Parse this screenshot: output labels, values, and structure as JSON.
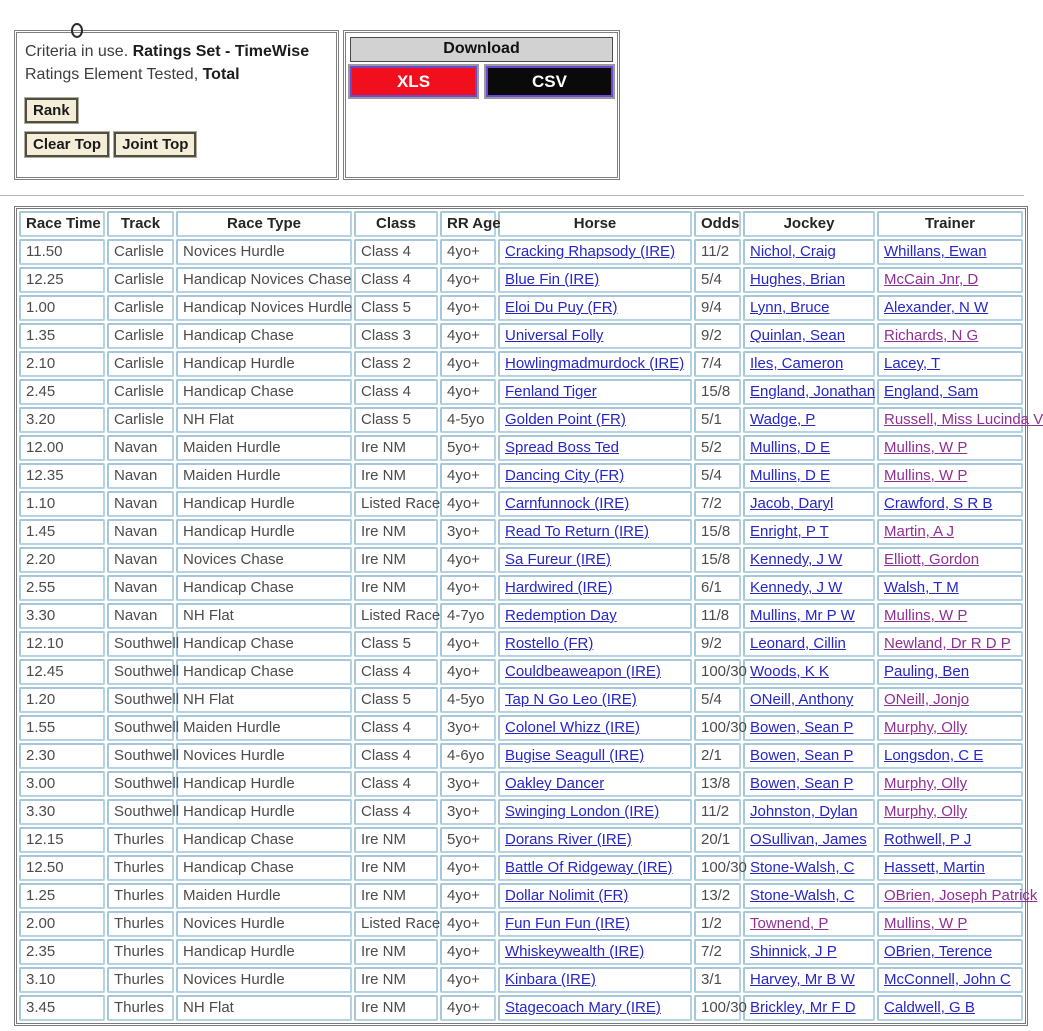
{
  "criteria_box": {
    "line1_prefix": "Criteria in use. ",
    "line1_bold": "Ratings Set - TimeWise",
    "line2_prefix": "Ratings Element Tested, ",
    "line2_bold": "Total",
    "rank_button": "Rank",
    "clear_top_button": "Clear Top",
    "joint_top_button": "Joint Top"
  },
  "download_box": {
    "title": "Download",
    "xls_button": "XLS",
    "csv_button": "CSV"
  },
  "colors": {
    "link_blue": "#2626c9",
    "link_visited_purple": "#8e3094",
    "cell_border_blue": "#b4d2df",
    "xls_red": "#f10e1d",
    "csv_black": "#0a0a0a",
    "button_beige": "#f4eed8",
    "download_header_gray": "#d2d2d2"
  },
  "table": {
    "headers": [
      "Race Time",
      "Track",
      "Race Type",
      "Class",
      "RR Age",
      "Horse",
      "Odds",
      "Jockey",
      "Trainer"
    ],
    "rows": [
      {
        "time": "11.50",
        "track": "Carlisle",
        "race_type": "Novices Hurdle",
        "race_class": "Class 4",
        "rr_age": "4yo+",
        "horse": "Cracking Rhapsody (IRE)",
        "odds": "11/2",
        "jockey": "Nichol, Craig",
        "trainer": "Whillans, Ewan",
        "visited": []
      },
      {
        "time": "12.25",
        "track": "Carlisle",
        "race_type": "Handicap Novices Chase",
        "race_class": "Class 4",
        "rr_age": "4yo+",
        "horse": "Blue Fin (IRE)",
        "odds": "5/4",
        "jockey": "Hughes, Brian",
        "trainer": "McCain Jnr, D",
        "visited": [
          "trainer"
        ]
      },
      {
        "time": "1.00",
        "track": "Carlisle",
        "race_type": "Handicap Novices Hurdle",
        "race_class": "Class 5",
        "rr_age": "4yo+",
        "horse": "Eloi Du Puy (FR)",
        "odds": "9/4",
        "jockey": "Lynn, Bruce",
        "trainer": "Alexander, N W",
        "visited": []
      },
      {
        "time": "1.35",
        "track": "Carlisle",
        "race_type": "Handicap Chase",
        "race_class": "Class 3",
        "rr_age": "4yo+",
        "horse": "Universal Folly",
        "odds": "9/2",
        "jockey": "Quinlan, Sean",
        "trainer": "Richards, N G",
        "visited": [
          "trainer"
        ]
      },
      {
        "time": "2.10",
        "track": "Carlisle",
        "race_type": "Handicap Hurdle",
        "race_class": "Class 2",
        "rr_age": "4yo+",
        "horse": "Howlingmadmurdock (IRE)",
        "odds": "7/4",
        "jockey": "Iles, Cameron",
        "trainer": "Lacey, T",
        "visited": []
      },
      {
        "time": "2.45",
        "track": "Carlisle",
        "race_type": "Handicap Chase",
        "race_class": "Class 4",
        "rr_age": "4yo+",
        "horse": "Fenland Tiger",
        "odds": "15/8",
        "jockey": "England, Jonathan",
        "trainer": "England, Sam",
        "visited": []
      },
      {
        "time": "3.20",
        "track": "Carlisle",
        "race_type": "NH Flat",
        "race_class": "Class 5",
        "rr_age": "4-5yo",
        "horse": "Golden Point (FR)",
        "odds": "5/1",
        "jockey": "Wadge, P",
        "trainer": "Russell, Miss Lucinda V",
        "visited": [
          "trainer"
        ]
      },
      {
        "time": "12.00",
        "track": "Navan",
        "race_type": "Maiden Hurdle",
        "race_class": "Ire NM",
        "rr_age": "5yo+",
        "horse": "Spread Boss Ted",
        "odds": "5/2",
        "jockey": "Mullins, D E",
        "trainer": "Mullins, W P",
        "visited": [
          "trainer"
        ]
      },
      {
        "time": "12.35",
        "track": "Navan",
        "race_type": "Maiden Hurdle",
        "race_class": "Ire NM",
        "rr_age": "4yo+",
        "horse": "Dancing City (FR)",
        "odds": "5/4",
        "jockey": "Mullins, D E",
        "trainer": "Mullins, W P",
        "visited": [
          "trainer"
        ]
      },
      {
        "time": "1.10",
        "track": "Navan",
        "race_type": "Handicap Hurdle",
        "race_class": "Listed Race",
        "rr_age": "4yo+",
        "horse": "Carnfunnock (IRE)",
        "odds": "7/2",
        "jockey": "Jacob, Daryl",
        "trainer": "Crawford, S R B",
        "visited": []
      },
      {
        "time": "1.45",
        "track": "Navan",
        "race_type": "Handicap Hurdle",
        "race_class": "Ire NM",
        "rr_age": "3yo+",
        "horse": "Read To Return (IRE)",
        "odds": "15/8",
        "jockey": "Enright, P T",
        "trainer": "Martin, A J",
        "visited": [
          "trainer"
        ]
      },
      {
        "time": "2.20",
        "track": "Navan",
        "race_type": "Novices Chase",
        "race_class": "Ire NM",
        "rr_age": "4yo+",
        "horse": "Sa Fureur (IRE)",
        "odds": "15/8",
        "jockey": "Kennedy, J W",
        "trainer": "Elliott, Gordon",
        "visited": [
          "trainer"
        ]
      },
      {
        "time": "2.55",
        "track": "Navan",
        "race_type": "Handicap Chase",
        "race_class": "Ire NM",
        "rr_age": "4yo+",
        "horse": "Hardwired (IRE)",
        "odds": "6/1",
        "jockey": "Kennedy, J W",
        "trainer": "Walsh, T M",
        "visited": []
      },
      {
        "time": "3.30",
        "track": "Navan",
        "race_type": "NH Flat",
        "race_class": "Listed Race",
        "rr_age": "4-7yo",
        "horse": "Redemption Day",
        "odds": "11/8",
        "jockey": "Mullins, Mr P W",
        "trainer": "Mullins, W P",
        "visited": [
          "trainer"
        ]
      },
      {
        "time": "12.10",
        "track": "Southwell",
        "race_type": "Handicap Chase",
        "race_class": "Class 5",
        "rr_age": "4yo+",
        "horse": "Rostello (FR)",
        "odds": "9/2",
        "jockey": "Leonard, Cillin",
        "trainer": "Newland, Dr R D P",
        "visited": [
          "trainer"
        ]
      },
      {
        "time": "12.45",
        "track": "Southwell",
        "race_type": "Handicap Chase",
        "race_class": "Class 4",
        "rr_age": "4yo+",
        "horse": "Couldbeaweapon (IRE)",
        "odds": "100/30",
        "jockey": "Woods, K K",
        "trainer": "Pauling, Ben",
        "visited": []
      },
      {
        "time": "1.20",
        "track": "Southwell",
        "race_type": "NH Flat",
        "race_class": "Class 5",
        "rr_age": "4-5yo",
        "horse": "Tap N Go Leo (IRE)",
        "odds": "5/4",
        "jockey": "ONeill, Anthony",
        "trainer": "ONeill, Jonjo",
        "visited": [
          "trainer"
        ]
      },
      {
        "time": "1.55",
        "track": "Southwell",
        "race_type": "Maiden Hurdle",
        "race_class": "Class 4",
        "rr_age": "3yo+",
        "horse": "Colonel Whizz (IRE)",
        "odds": "100/30",
        "jockey": "Bowen, Sean P",
        "trainer": "Murphy, Olly",
        "visited": [
          "trainer"
        ]
      },
      {
        "time": "2.30",
        "track": "Southwell",
        "race_type": "Novices Hurdle",
        "race_class": "Class 4",
        "rr_age": "4-6yo",
        "horse": "Bugise Seagull (IRE)",
        "odds": "2/1",
        "jockey": "Bowen, Sean P",
        "trainer": "Longsdon, C E",
        "visited": []
      },
      {
        "time": "3.00",
        "track": "Southwell",
        "race_type": "Handicap Hurdle",
        "race_class": "Class 4",
        "rr_age": "3yo+",
        "horse": "Oakley Dancer",
        "odds": "13/8",
        "jockey": "Bowen, Sean P",
        "trainer": "Murphy, Olly",
        "visited": [
          "trainer"
        ]
      },
      {
        "time": "3.30",
        "track": "Southwell",
        "race_type": "Handicap Hurdle",
        "race_class": "Class 4",
        "rr_age": "3yo+",
        "horse": "Swinging London (IRE)",
        "odds": "11/2",
        "jockey": "Johnston, Dylan",
        "trainer": "Murphy, Olly",
        "visited": [
          "trainer"
        ]
      },
      {
        "time": "12.15",
        "track": "Thurles",
        "race_type": "Handicap Chase",
        "race_class": "Ire NM",
        "rr_age": "5yo+",
        "horse": "Dorans River (IRE)",
        "odds": "20/1",
        "jockey": "OSullivan, James",
        "trainer": "Rothwell, P J",
        "visited": []
      },
      {
        "time": "12.50",
        "track": "Thurles",
        "race_type": "Handicap Chase",
        "race_class": "Ire NM",
        "rr_age": "4yo+",
        "horse": "Battle Of Ridgeway (IRE)",
        "odds": "100/30",
        "jockey": "Stone-Walsh, C",
        "trainer": "Hassett, Martin",
        "visited": []
      },
      {
        "time": "1.25",
        "track": "Thurles",
        "race_type": "Maiden Hurdle",
        "race_class": "Ire NM",
        "rr_age": "4yo+",
        "horse": "Dollar Nolimit (FR)",
        "odds": "13/2",
        "jockey": "Stone-Walsh, C",
        "trainer": "OBrien, Joseph Patrick",
        "visited": [
          "trainer"
        ]
      },
      {
        "time": "2.00",
        "track": "Thurles",
        "race_type": "Novices Hurdle",
        "race_class": "Listed Race",
        "rr_age": "4yo+",
        "horse": "Fun Fun Fun (IRE)",
        "odds": "1/2",
        "jockey": "Townend, P",
        "trainer": "Mullins, W P",
        "visited": [
          "jockey",
          "trainer"
        ]
      },
      {
        "time": "2.35",
        "track": "Thurles",
        "race_type": "Handicap Hurdle",
        "race_class": "Ire NM",
        "rr_age": "4yo+",
        "horse": "Whiskeywealth (IRE)",
        "odds": "7/2",
        "jockey": "Shinnick, J P",
        "trainer": "OBrien, Terence",
        "visited": []
      },
      {
        "time": "3.10",
        "track": "Thurles",
        "race_type": "Novices Hurdle",
        "race_class": "Ire NM",
        "rr_age": "4yo+",
        "horse": "Kinbara (IRE)",
        "odds": "3/1",
        "jockey": "Harvey, Mr B W",
        "trainer": "McConnell, John C",
        "visited": []
      },
      {
        "time": "3.45",
        "track": "Thurles",
        "race_type": "NH Flat",
        "race_class": "Ire NM",
        "rr_age": "4yo+",
        "horse": "Stagecoach Mary (IRE)",
        "odds": "100/30",
        "jockey": "Brickley, Mr F D",
        "trainer": "Caldwell, G B",
        "visited": []
      }
    ]
  }
}
